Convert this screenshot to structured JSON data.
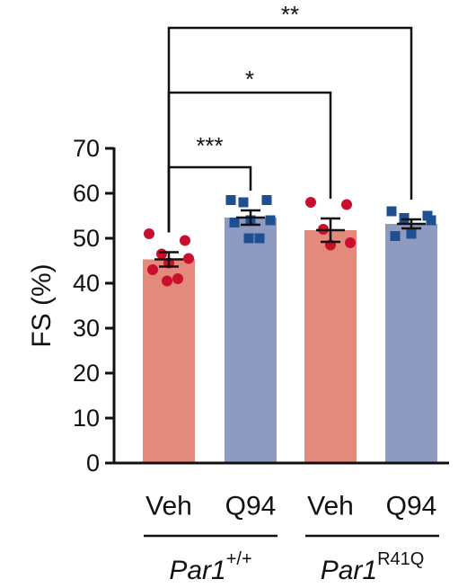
{
  "chart_data": {
    "type": "bar",
    "ylabel": "FS (%)",
    "ylim": [
      0,
      70
    ],
    "yticks": [
      0,
      10,
      20,
      30,
      40,
      50,
      60,
      70
    ],
    "categories": [
      "Veh",
      "Q94",
      "Veh",
      "Q94"
    ],
    "groups": [
      {
        "label": "Par1",
        "sup": "+/+",
        "categories": [
          0,
          1
        ]
      },
      {
        "label": "Par1",
        "sup": "R41Q",
        "categories": [
          2,
          3
        ]
      }
    ],
    "bars": [
      {
        "category": "Veh",
        "group": "Par1+/+",
        "mean": 45.3,
        "sem": 1.6,
        "color": "#e38a7c",
        "point_color": "#c8102e",
        "point_shape": "circle",
        "points": [
          51.0,
          49.5,
          46.5,
          45.5,
          44.5,
          43.0,
          41.0,
          40.5
        ]
      },
      {
        "category": "Q94",
        "group": "Par1+/+",
        "mean": 54.6,
        "sem": 1.6,
        "color": "#8e9ac0",
        "point_color": "#1d4f91",
        "point_shape": "square",
        "points": [
          58.5,
          58.5,
          58.0,
          54.0,
          54.0,
          53.5,
          50.0,
          50.0
        ]
      },
      {
        "category": "Veh",
        "group": "Par1R41Q",
        "mean": 51.8,
        "sem": 2.6,
        "color": "#e38a7c",
        "point_color": "#c8102e",
        "point_shape": "circle",
        "points": [
          58.0,
          57.5,
          52.0,
          49.0,
          48.5
        ]
      },
      {
        "category": "Q94",
        "group": "Par1R41Q",
        "mean": 53.2,
        "sem": 1.0,
        "color": "#8e9ac0",
        "point_color": "#1d4f91",
        "point_shape": "square",
        "points": [
          56.0,
          55.0,
          54.5,
          54.0,
          51.0,
          50.5
        ]
      }
    ],
    "comparisons": [
      {
        "from": 0,
        "to": 1,
        "label": "***"
      },
      {
        "from": 0,
        "to": 2,
        "label": "*"
      },
      {
        "from": 0,
        "to": 3,
        "label": "**"
      }
    ]
  }
}
